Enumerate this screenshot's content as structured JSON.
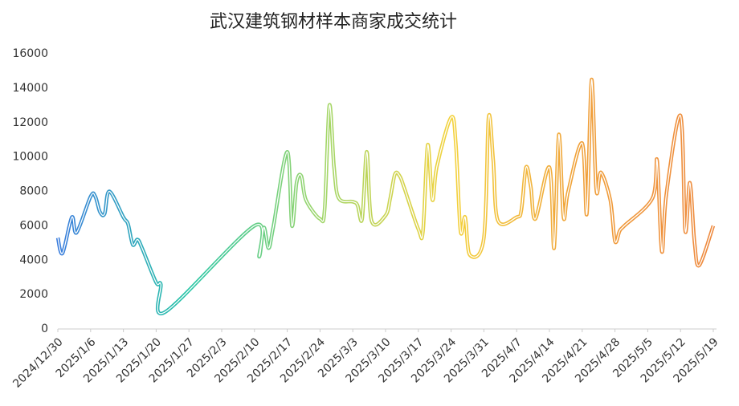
{
  "chart_data": {
    "type": "line",
    "title": "武汉建筑钢材样本商家成交统计",
    "x": [
      "2024/12/30",
      "2024/12/31",
      "2025/1/2",
      "2025/1/3",
      "2025/1/6",
      "2025/1/7",
      "2025/1/8",
      "2025/1/9",
      "2025/1/10",
      "2025/1/13",
      "2025/1/14",
      "2025/1/15",
      "2025/1/16",
      "2025/1/17",
      "2025/1/20",
      "2025/1/21",
      "2025/1/22",
      "2025/2/10",
      "2025/2/11",
      "2025/2/12",
      "2025/2/13",
      "2025/2/14",
      "2025/2/17",
      "2025/2/18",
      "2025/2/19",
      "2025/2/20",
      "2025/2/21",
      "2025/2/24",
      "2025/2/25",
      "2025/2/26",
      "2025/2/27",
      "2025/2/28",
      "2025/3/3",
      "2025/3/4",
      "2025/3/5",
      "2025/3/6",
      "2025/3/7",
      "2025/3/10",
      "2025/3/11",
      "2025/3/12",
      "2025/3/13",
      "2025/3/14",
      "2025/3/17",
      "2025/3/18",
      "2025/3/19",
      "2025/3/20",
      "2025/3/21",
      "2025/3/24",
      "2025/3/25",
      "2025/3/26",
      "2025/3/27",
      "2025/3/28",
      "2025/3/31",
      "2025/4/1",
      "2025/4/2",
      "2025/4/3",
      "2025/4/7",
      "2025/4/8",
      "2025/4/9",
      "2025/4/10",
      "2025/4/11",
      "2025/4/14",
      "2025/4/15",
      "2025/4/16",
      "2025/4/17",
      "2025/4/18",
      "2025/4/21",
      "2025/4/22",
      "2025/4/23",
      "2025/4/24",
      "2025/4/25",
      "2025/4/27",
      "2025/4/28",
      "2025/4/29",
      "2025/4/30",
      "2025/5/6",
      "2025/5/7",
      "2025/5/8",
      "2025/5/9",
      "2025/5/12",
      "2025/5/13",
      "2025/5/14",
      "2025/5/15",
      "2025/5/16",
      "2025/5/19"
    ],
    "values": [
      5300,
      4400,
      6500,
      5600,
      7700,
      7700,
      6800,
      6700,
      8000,
      6500,
      6100,
      4900,
      5200,
      4700,
      2700,
      2600,
      1000,
      6000,
      4200,
      5900,
      4700,
      5900,
      10300,
      6000,
      8500,
      8900,
      7500,
      6400,
      7000,
      13000,
      9400,
      7600,
      7400,
      7200,
      6400,
      10300,
      6300,
      6600,
      7600,
      9000,
      8900,
      8200,
      5800,
      5700,
      10700,
      7500,
      9500,
      12300,
      10800,
      5700,
      6500,
      4300,
      5300,
      12300,
      9800,
      6300,
      6500,
      6900,
      9400,
      8300,
      6400,
      9400,
      4700,
      11300,
      6500,
      8000,
      10800,
      6700,
      14500,
      8100,
      9100,
      7500,
      5100,
      5700,
      6000,
      7600,
      9800,
      4500,
      7900,
      12400,
      5700,
      8500,
      5000,
      3700,
      6000
    ],
    "xlim": [
      "2024/12/30",
      "2025/5/19"
    ],
    "xticks": [
      "2024/12/30",
      "2025/1/6",
      "2025/1/13",
      "2025/1/20",
      "2025/1/27",
      "2025/2/3",
      "2025/2/10",
      "2025/2/17",
      "2025/2/24",
      "2025/3/3",
      "2025/3/10",
      "2025/3/17",
      "2025/3/24",
      "2025/3/31",
      "2025/4/7",
      "2025/4/14",
      "2025/4/21",
      "2025/4/28",
      "2025/5/5",
      "2025/5/12",
      "2025/5/19"
    ],
    "ylim": [
      0,
      16000
    ],
    "yticks": [
      0,
      2000,
      4000,
      6000,
      8000,
      10000,
      12000,
      14000,
      16000
    ],
    "gradient": [
      "#3b7ddd",
      "#28c6a6",
      "#9fd66a",
      "#f3d23c",
      "#f0a03a",
      "#ee8a40"
    ],
    "grid": false
  }
}
